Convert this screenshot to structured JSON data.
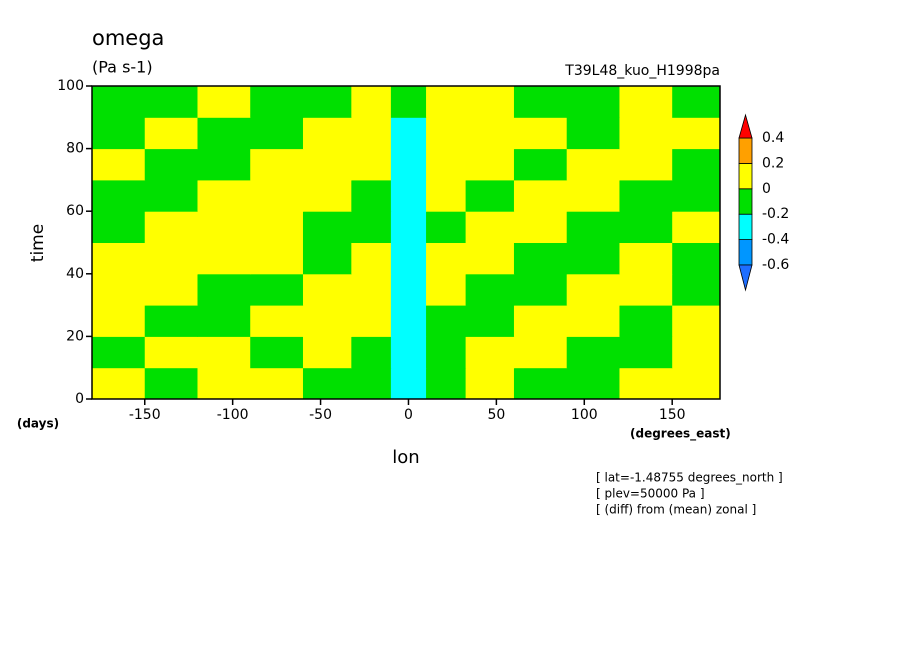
{
  "chart_data": {
    "type": "heatmap",
    "title": "omega",
    "subtitle": "(Pa s-1)",
    "right_title": "T39L48_kuo_H1998pa",
    "xlabel": "lon",
    "xunit": "(degrees_east)",
    "ylabel": "time",
    "yunit": "(days)",
    "notes": [
      "[ lat=-1.48755 degrees_north ]",
      "[ plev=50000 Pa ]",
      "[ (diff) from (mean) zonal ]"
    ],
    "xlim": [
      -180,
      177.19
    ],
    "xticks": [
      -150,
      -100,
      -50,
      0,
      50,
      100,
      150
    ],
    "ylim": [
      0,
      100
    ],
    "yticks": [
      0,
      20,
      40,
      60,
      80,
      100
    ],
    "levels": [
      -0.6,
      -0.4,
      -0.2,
      0,
      0.2,
      0.4
    ],
    "colors": [
      "#1e6eff",
      "#0096ff",
      "#00ffff",
      "#00e000",
      "#ffff00",
      "#ffa000",
      "#ff0000"
    ],
    "x": [
      -165,
      -135,
      -105,
      -75,
      -45,
      -20,
      0,
      20,
      45,
      75,
      105,
      135,
      165
    ],
    "y": [
      5,
      15,
      25,
      35,
      45,
      55,
      65,
      75,
      85,
      95
    ],
    "z": [
      [
        0.1,
        -0.1,
        0.1,
        0.1,
        -0.1,
        -0.1,
        -0.3,
        -0.1,
        0.1,
        -0.1,
        -0.1,
        0.1,
        0.1
      ],
      [
        -0.1,
        0.1,
        0.1,
        -0.1,
        0.1,
        -0.1,
        -0.3,
        -0.1,
        0.1,
        0.1,
        -0.1,
        -0.1,
        0.1
      ],
      [
        0.1,
        -0.1,
        -0.1,
        0.1,
        0.1,
        0.1,
        -0.3,
        -0.1,
        -0.1,
        0.1,
        0.1,
        -0.1,
        0.1
      ],
      [
        0.1,
        0.1,
        -0.1,
        -0.1,
        0.1,
        0.1,
        -0.3,
        0.1,
        -0.1,
        -0.1,
        0.1,
        0.1,
        -0.1
      ],
      [
        0.1,
        0.1,
        0.1,
        0.1,
        -0.1,
        0.1,
        -0.3,
        0.1,
        0.1,
        -0.1,
        -0.1,
        0.1,
        -0.1
      ],
      [
        -0.1,
        0.1,
        0.1,
        0.1,
        -0.1,
        -0.1,
        -0.3,
        -0.1,
        0.1,
        0.1,
        -0.1,
        -0.1,
        0.1
      ],
      [
        -0.1,
        -0.1,
        0.1,
        0.1,
        0.1,
        -0.1,
        -0.3,
        0.1,
        -0.1,
        0.1,
        0.1,
        -0.1,
        -0.1
      ],
      [
        0.1,
        -0.1,
        -0.1,
        0.1,
        0.1,
        0.1,
        -0.3,
        0.1,
        0.1,
        -0.1,
        0.1,
        0.1,
        -0.1
      ],
      [
        -0.1,
        0.1,
        -0.1,
        -0.1,
        0.1,
        0.1,
        -0.3,
        0.1,
        0.1,
        0.1,
        -0.1,
        0.1,
        0.1
      ],
      [
        -0.1,
        -0.1,
        0.1,
        -0.1,
        -0.1,
        0.1,
        -0.1,
        0.1,
        0.1,
        -0.1,
        -0.1,
        0.1,
        -0.1
      ]
    ]
  }
}
